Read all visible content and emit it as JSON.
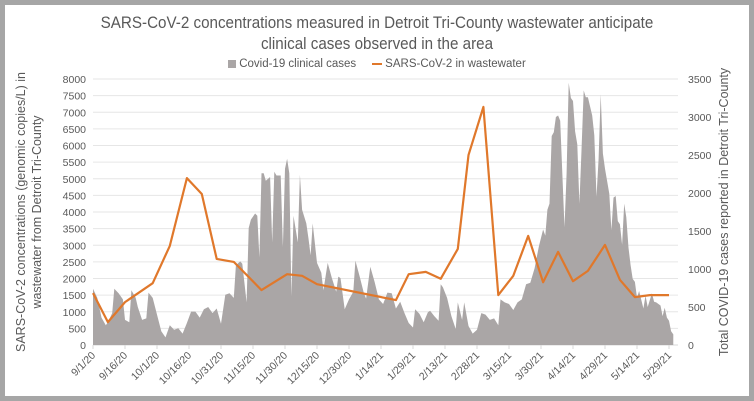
{
  "chart_data": {
    "type": "area+line",
    "title_lines": [
      "SARS-CoV-2 concentrations measured in Detroit Tri-County wastewater anticipate",
      "clinical cases observed in the area"
    ],
    "legend_placement": "top-center",
    "legend": [
      {
        "label": "Covid-19 clinical cases",
        "kind": "area",
        "color": "#aaa6a6"
      },
      {
        "label": "SARS-CoV-2 in wastewater",
        "kind": "line",
        "color": "#e0782b"
      }
    ],
    "x_start_date": "9/1/20",
    "x_tick_labels": [
      "9/1/20",
      "9/16/20",
      "10/1/20",
      "10/16/20",
      "10/31/20",
      "11/15/20",
      "11/30/20",
      "12/15/20",
      "12/30/20",
      "1/14/21",
      "1/29/21",
      "2/13/21",
      "2/28/21",
      "3/15/21",
      "3/30/21",
      "4/14/21",
      "4/29/21",
      "5/14/21",
      "5/29/21"
    ],
    "x_tick_interval_days": 15,
    "x_range_days": [
      0,
      276
    ],
    "y_left": {
      "label_lines": [
        "SARS-CoV-2  concentrations (genomic copies/L) in",
        "wastewater from Detroit Tri-County"
      ],
      "range": [
        0,
        8000
      ],
      "ticks": [
        0,
        500,
        1000,
        1500,
        2000,
        2500,
        3000,
        3500,
        4000,
        4500,
        5000,
        5500,
        6000,
        6500,
        7000,
        7500,
        8000
      ]
    },
    "y_right": {
      "label": "Total COVID-19 cases reported in Detroit Tri-County",
      "range": [
        0,
        3500
      ],
      "ticks": [
        0,
        500,
        1000,
        1500,
        2000,
        2500,
        3000,
        3500
      ]
    },
    "gridlines": true,
    "series": [
      {
        "name": "SARS-CoV-2 in wastewater",
        "axis": "left",
        "points_day_value": [
          [
            0,
            1560
          ],
          [
            7,
            690
          ],
          [
            15,
            1290
          ],
          [
            28,
            1860
          ],
          [
            36,
            2980
          ],
          [
            44,
            5020
          ],
          [
            51,
            4540
          ],
          [
            58,
            2590
          ],
          [
            66,
            2500
          ],
          [
            79,
            1650
          ],
          [
            91,
            2130
          ],
          [
            98,
            2080
          ],
          [
            105,
            1830
          ],
          [
            142,
            1350
          ],
          [
            148,
            2130
          ],
          [
            156,
            2200
          ],
          [
            163,
            1990
          ],
          [
            171,
            2890
          ],
          [
            176,
            5710
          ],
          [
            183,
            7160
          ],
          [
            190,
            1500
          ],
          [
            197,
            2080
          ],
          [
            204,
            3280
          ],
          [
            211,
            1890
          ],
          [
            218,
            2800
          ],
          [
            225,
            1920
          ],
          [
            232,
            2230
          ],
          [
            240,
            3010
          ],
          [
            247,
            1960
          ],
          [
            254,
            1440
          ],
          [
            261,
            1500
          ],
          [
            270,
            1500
          ]
        ]
      },
      {
        "name": "Covid-19 clinical cases",
        "axis": "right",
        "points_day_value": [
          [
            0,
            740
          ],
          [
            2,
            620
          ],
          [
            4,
            360
          ],
          [
            6,
            260
          ],
          [
            7,
            300
          ],
          [
            9,
            420
          ],
          [
            10,
            740
          ],
          [
            12,
            680
          ],
          [
            14,
            600
          ],
          [
            15,
            330
          ],
          [
            17,
            300
          ],
          [
            18,
            720
          ],
          [
            20,
            620
          ],
          [
            21,
            500
          ],
          [
            23,
            330
          ],
          [
            25,
            350
          ],
          [
            26,
            690
          ],
          [
            28,
            620
          ],
          [
            30,
            400
          ],
          [
            32,
            180
          ],
          [
            34,
            100
          ],
          [
            36,
            260
          ],
          [
            38,
            200
          ],
          [
            40,
            220
          ],
          [
            42,
            150
          ],
          [
            44,
            290
          ],
          [
            46,
            440
          ],
          [
            48,
            440
          ],
          [
            50,
            360
          ],
          [
            52,
            470
          ],
          [
            54,
            500
          ],
          [
            56,
            420
          ],
          [
            58,
            480
          ],
          [
            60,
            280
          ],
          [
            62,
            660
          ],
          [
            64,
            680
          ],
          [
            66,
            620
          ],
          [
            67,
            1050
          ],
          [
            69,
            1100
          ],
          [
            70,
            1070
          ],
          [
            72,
            560
          ],
          [
            73,
            1540
          ],
          [
            74,
            1650
          ],
          [
            76,
            1730
          ],
          [
            77,
            1700
          ],
          [
            78,
            1150
          ],
          [
            79,
            2260
          ],
          [
            80,
            2260
          ],
          [
            81,
            2160
          ],
          [
            83,
            2210
          ],
          [
            84,
            1350
          ],
          [
            85,
            2280
          ],
          [
            86,
            2230
          ],
          [
            88,
            2230
          ],
          [
            89,
            1290
          ],
          [
            90,
            2320
          ],
          [
            91,
            2450
          ],
          [
            92,
            2260
          ],
          [
            93,
            640
          ],
          [
            94,
            1700
          ],
          [
            96,
            1350
          ],
          [
            97,
            2240
          ],
          [
            98,
            1780
          ],
          [
            100,
            1600
          ],
          [
            101,
            1400
          ],
          [
            102,
            1180
          ],
          [
            103,
            1600
          ],
          [
            105,
            1080
          ],
          [
            107,
            950
          ],
          [
            108,
            720
          ],
          [
            110,
            1080
          ],
          [
            112,
            880
          ],
          [
            114,
            700
          ],
          [
            115,
            900
          ],
          [
            116,
            880
          ],
          [
            118,
            470
          ],
          [
            120,
            600
          ],
          [
            122,
            700
          ],
          [
            123,
            1110
          ],
          [
            125,
            900
          ],
          [
            127,
            680
          ],
          [
            128,
            610
          ],
          [
            130,
            1030
          ],
          [
            132,
            830
          ],
          [
            134,
            600
          ],
          [
            136,
            540
          ],
          [
            138,
            690
          ],
          [
            140,
            680
          ],
          [
            142,
            480
          ],
          [
            144,
            570
          ],
          [
            146,
            420
          ],
          [
            148,
            290
          ],
          [
            150,
            230
          ],
          [
            151,
            470
          ],
          [
            153,
            410
          ],
          [
            155,
            300
          ],
          [
            157,
            430
          ],
          [
            158,
            450
          ],
          [
            160,
            380
          ],
          [
            162,
            320
          ],
          [
            163,
            800
          ],
          [
            164,
            760
          ],
          [
            166,
            620
          ],
          [
            168,
            380
          ],
          [
            170,
            210
          ],
          [
            171,
            560
          ],
          [
            173,
            330
          ],
          [
            174,
            560
          ],
          [
            176,
            250
          ],
          [
            178,
            150
          ],
          [
            180,
            200
          ],
          [
            182,
            420
          ],
          [
            184,
            400
          ],
          [
            186,
            330
          ],
          [
            188,
            350
          ],
          [
            190,
            260
          ],
          [
            191,
            600
          ],
          [
            193,
            560
          ],
          [
            195,
            540
          ],
          [
            197,
            460
          ],
          [
            199,
            560
          ],
          [
            201,
            600
          ],
          [
            203,
            800
          ],
          [
            205,
            820
          ],
          [
            207,
            1010
          ],
          [
            209,
            1300
          ],
          [
            211,
            1520
          ],
          [
            212,
            1440
          ],
          [
            213,
            1780
          ],
          [
            214,
            1860
          ],
          [
            215,
            2750
          ],
          [
            216,
            2800
          ],
          [
            217,
            3000
          ],
          [
            218,
            3020
          ],
          [
            219,
            2950
          ],
          [
            221,
            1550
          ],
          [
            222,
            2260
          ],
          [
            223,
            3450
          ],
          [
            224,
            3250
          ],
          [
            225,
            3210
          ],
          [
            226,
            2810
          ],
          [
            227,
            2640
          ],
          [
            228,
            1860
          ],
          [
            229,
            2560
          ],
          [
            230,
            3350
          ],
          [
            231,
            3260
          ],
          [
            232,
            3260
          ],
          [
            234,
            3020
          ],
          [
            235,
            2760
          ],
          [
            236,
            1950
          ],
          [
            237,
            2450
          ],
          [
            238,
            3300
          ],
          [
            239,
            2520
          ],
          [
            240,
            2320
          ],
          [
            242,
            1990
          ],
          [
            243,
            1510
          ],
          [
            244,
            1940
          ],
          [
            245,
            1960
          ],
          [
            246,
            1630
          ],
          [
            247,
            1590
          ],
          [
            248,
            1320
          ],
          [
            249,
            1860
          ],
          [
            250,
            1680
          ],
          [
            251,
            1280
          ],
          [
            252,
            1050
          ],
          [
            253,
            870
          ],
          [
            254,
            830
          ],
          [
            255,
            620
          ],
          [
            256,
            710
          ],
          [
            258,
            480
          ],
          [
            259,
            650
          ],
          [
            260,
            500
          ],
          [
            262,
            680
          ],
          [
            263,
            570
          ],
          [
            264,
            560
          ],
          [
            266,
            520
          ],
          [
            267,
            380
          ],
          [
            268,
            490
          ],
          [
            269,
            360
          ],
          [
            270,
            320
          ],
          [
            271,
            180
          ],
          [
            272,
            140
          ]
        ]
      }
    ]
  }
}
